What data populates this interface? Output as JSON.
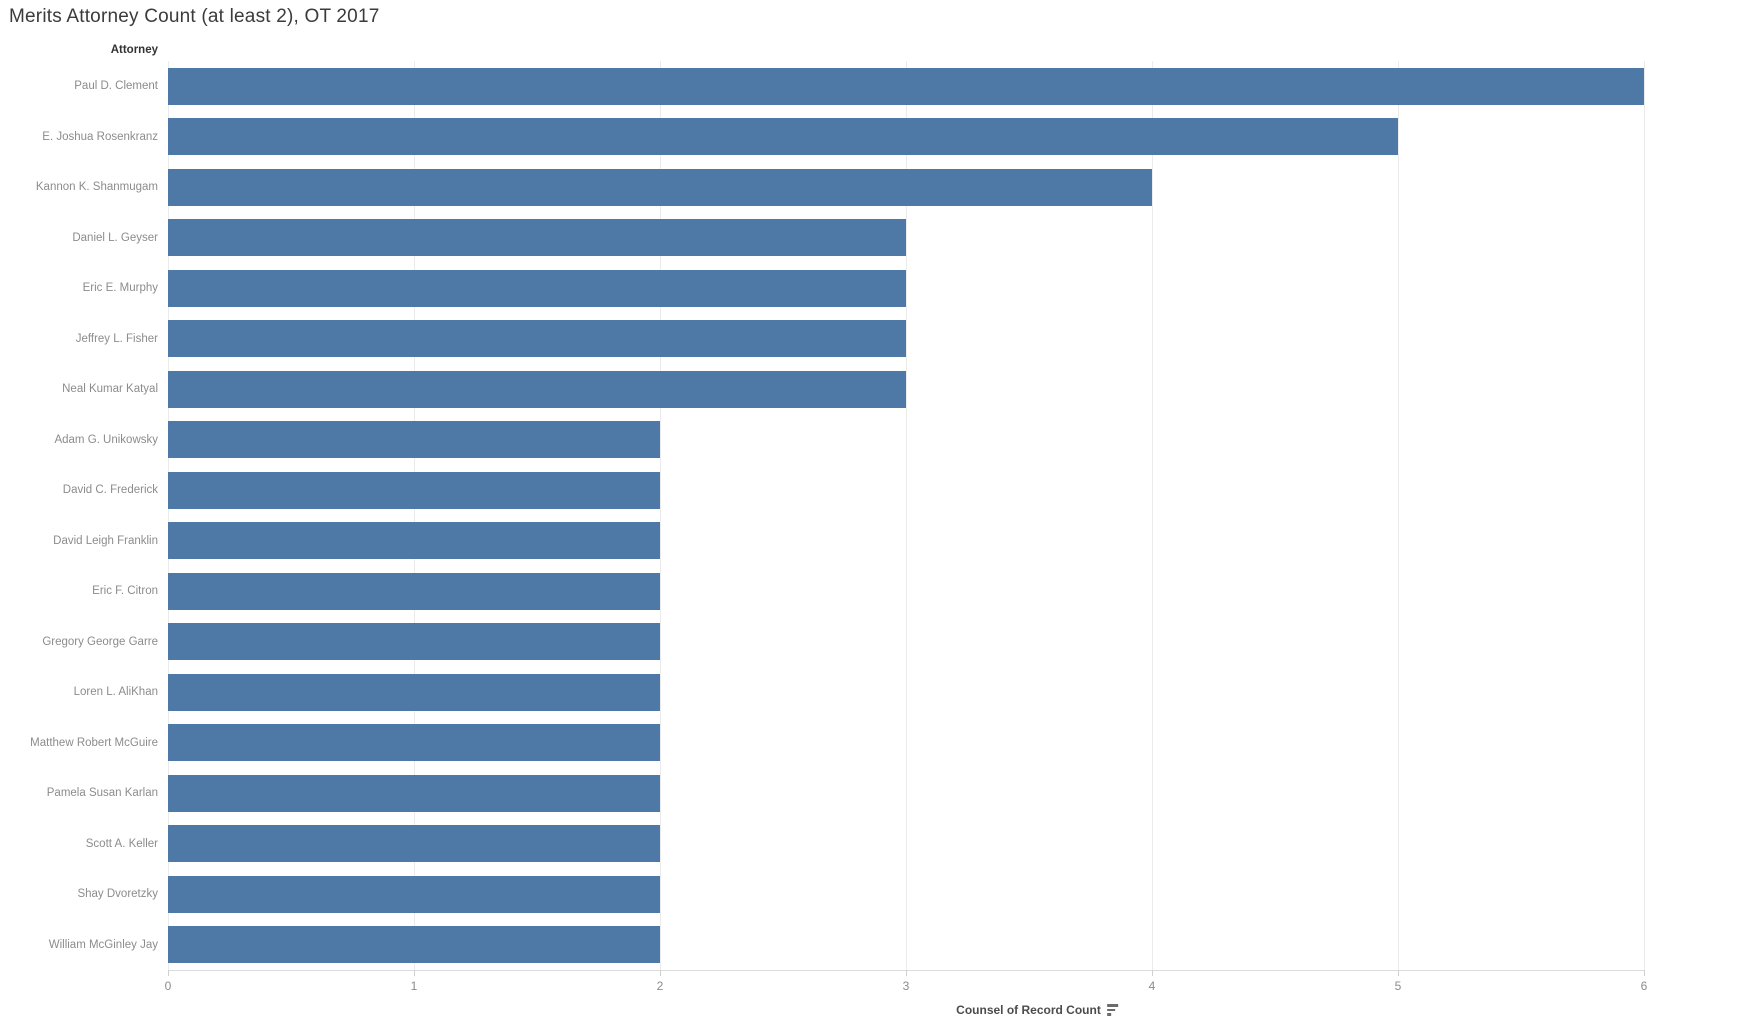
{
  "title": "Merits Attorney Count (at least 2), OT 2017",
  "row_header": "Attorney",
  "x_axis": {
    "title": "Counsel of Record Count",
    "sort_indicator": "sort-descending-icon",
    "ticks": [
      "0",
      "1",
      "2",
      "3",
      "4",
      "5",
      "6"
    ],
    "min": 0,
    "max": 6
  },
  "colors": {
    "bar": "#4e79a7",
    "title_text": "#3b3b3b",
    "row_label_text": "#8c8c8c",
    "axis_text": "#8c8c8c",
    "gridline": "#ebebeb",
    "axis_line": "#dcdcdc"
  },
  "chart_data": {
    "type": "bar",
    "orientation": "horizontal",
    "title": "Merits Attorney Count (at least 2), OT 2017",
    "categories": [
      "Paul D. Clement",
      "E. Joshua Rosenkranz",
      "Kannon K. Shanmugam",
      "Daniel L. Geyser",
      "Eric E. Murphy",
      "Jeffrey L. Fisher",
      "Neal Kumar Katyal",
      "Adam G. Unikowsky",
      "David C. Frederick",
      "David Leigh Franklin",
      "Eric F. Citron",
      "Gregory George Garre",
      "Loren L. AliKhan",
      "Matthew Robert McGuire",
      "Pamela Susan Karlan",
      "Scott A. Keller",
      "Shay Dvoretzky",
      "William McGinley Jay"
    ],
    "values": [
      6,
      5,
      4,
      3,
      3,
      3,
      3,
      2,
      2,
      2,
      2,
      2,
      2,
      2,
      2,
      2,
      2,
      2
    ],
    "xlabel": "Counsel of Record Count",
    "ylabel": "Attorney",
    "xlim": [
      0,
      6
    ],
    "x_ticks": [
      0,
      1,
      2,
      3,
      4,
      5,
      6
    ],
    "sort": "descending",
    "legend": "none",
    "gridlines": true
  }
}
